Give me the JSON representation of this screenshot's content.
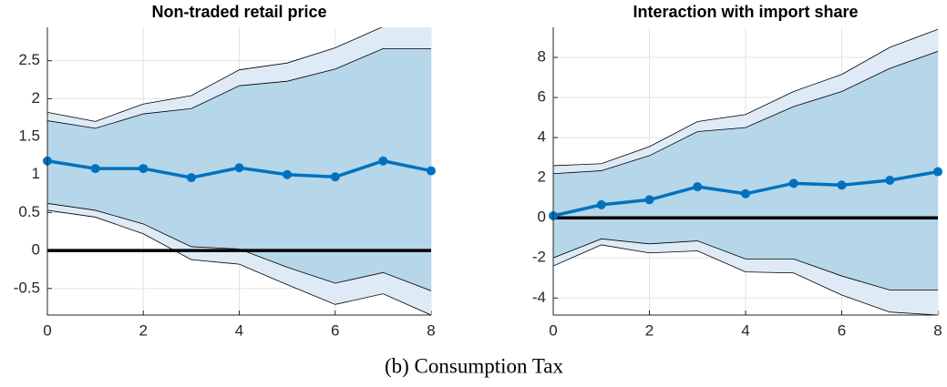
{
  "chart_data": [
    {
      "type": "band-line",
      "title": "Non-traded retail price",
      "x": [
        0,
        1,
        2,
        3,
        4,
        5,
        6,
        7,
        8
      ],
      "values": [
        1.18,
        1.08,
        1.08,
        0.96,
        1.09,
        1.0,
        0.97,
        1.18,
        1.05
      ],
      "color": "#0072bd",
      "bands": [
        {
          "lower": [
            0.53,
            0.44,
            0.22,
            -0.12,
            -0.18,
            -0.45,
            -0.71,
            -0.57,
            -0.85
          ],
          "upper": [
            1.82,
            1.7,
            1.93,
            2.04,
            2.38,
            2.47,
            2.67,
            2.95,
            2.96
          ],
          "color": "#deebf6"
        },
        {
          "lower": [
            0.62,
            0.53,
            0.35,
            0.05,
            0.02,
            -0.22,
            -0.43,
            -0.29,
            -0.53
          ],
          "upper": [
            1.71,
            1.61,
            1.8,
            1.87,
            2.17,
            2.23,
            2.39,
            2.66,
            2.66
          ],
          "color": "#b6d6ea"
        }
      ],
      "hline": 0,
      "xlim": [
        0,
        8
      ],
      "xticks": [
        0,
        2,
        4,
        6,
        8
      ],
      "ylim": [
        -0.85,
        2.94
      ],
      "yticks": [
        -0.5,
        0,
        0.5,
        1,
        1.5,
        2,
        2.5
      ],
      "grid": true
    },
    {
      "type": "band-line",
      "title": "Interaction with import share",
      "x": [
        0,
        1,
        2,
        3,
        4,
        5,
        6,
        7,
        8
      ],
      "values": [
        0.1,
        0.65,
        0.9,
        1.55,
        1.2,
        1.72,
        1.63,
        1.87,
        2.3
      ],
      "color": "#0072bd",
      "bands": [
        {
          "lower": [
            -2.4,
            -1.35,
            -1.75,
            -1.65,
            -2.7,
            -2.75,
            -3.85,
            -4.7,
            -4.85
          ],
          "upper": [
            2.6,
            2.7,
            3.55,
            4.8,
            5.15,
            6.3,
            7.15,
            8.5,
            9.4
          ],
          "color": "#deebf6"
        },
        {
          "lower": [
            -2.0,
            -1.05,
            -1.3,
            -1.15,
            -2.05,
            -2.05,
            -2.9,
            -3.6,
            -3.6
          ],
          "upper": [
            2.2,
            2.35,
            3.1,
            4.3,
            4.5,
            5.55,
            6.3,
            7.45,
            8.3
          ],
          "color": "#b6d6ea"
        }
      ],
      "hline": 0,
      "xlim": [
        0,
        8
      ],
      "xticks": [
        0,
        2,
        4,
        6,
        8
      ],
      "ylim": [
        -4.85,
        9.5
      ],
      "yticks": [
        -4,
        -2,
        0,
        2,
        4,
        6,
        8
      ],
      "grid": true
    }
  ],
  "caption": "(b) Consumption Tax"
}
